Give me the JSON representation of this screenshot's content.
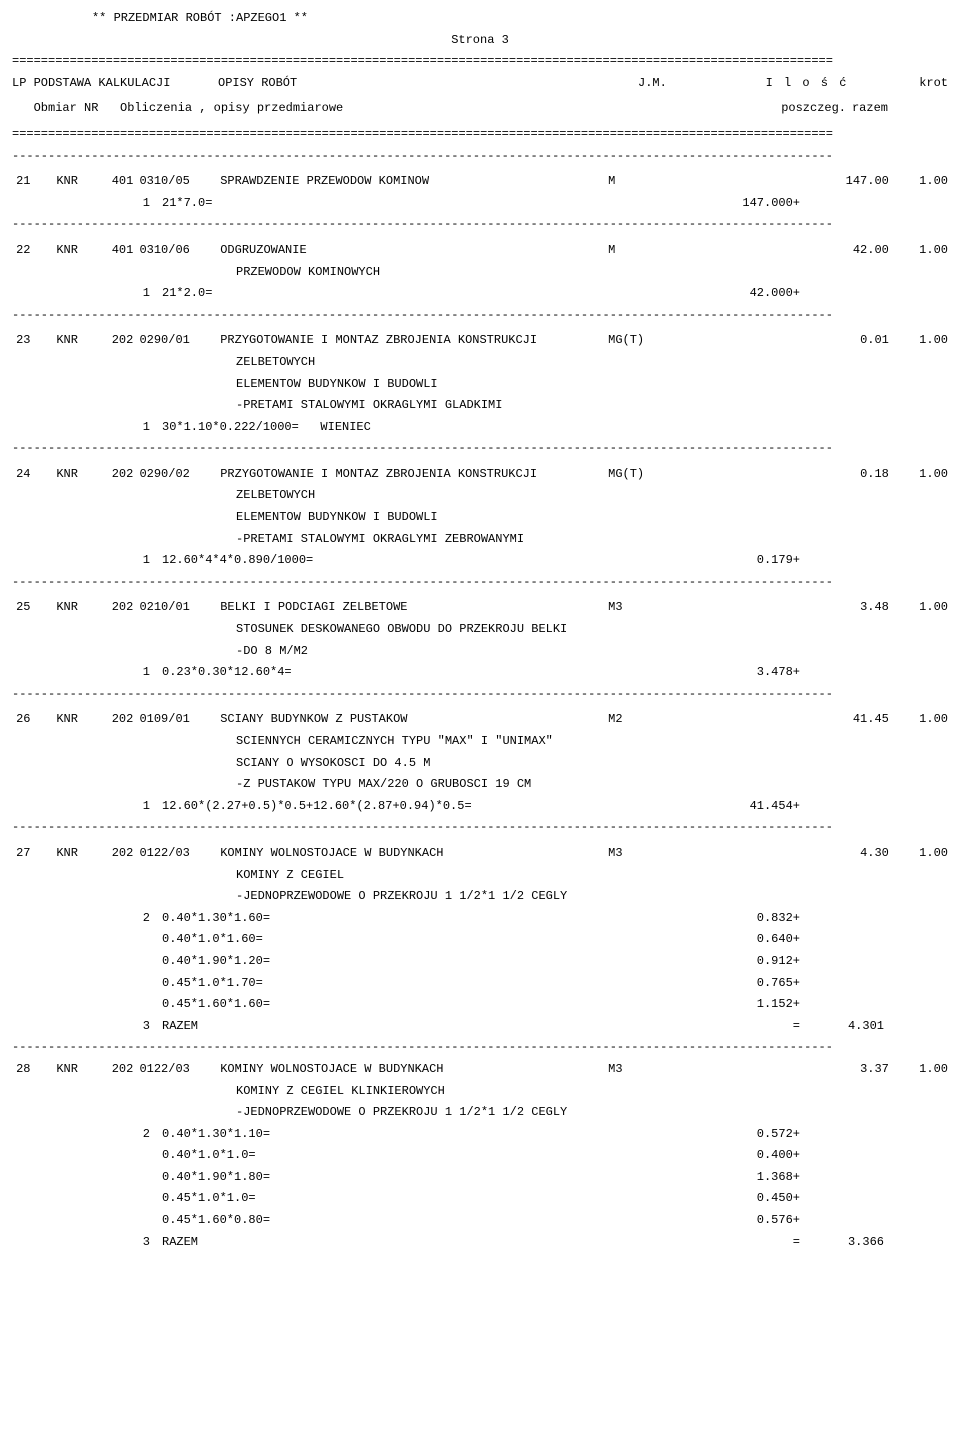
{
  "header": {
    "title": "** PRZEDMIAR ROBÓT :APZEGO1 **",
    "page": "Strona  3"
  },
  "columns": {
    "lp_podstawa": "LP PODSTAWA KALKULACJI",
    "opisy": "OPISY ROBÓT",
    "jm": "J.M.",
    "ilosc": "I l o ś ć",
    "krot": "krot",
    "obmiar": "   Obmiar NR   Obliczenia , opisy przedmiarowe",
    "poszczeg": "poszczeg.",
    "razem": "razem"
  },
  "sep_eq": "==================================================================================================================",
  "sep_dash": "------------------------------------------------------------------------------------------------------------------",
  "items": [
    {
      "lp": "21",
      "ref": "KNR",
      "num": "401",
      "code": "0310/05",
      "desc": [
        "SPRAWDZENIE PRZEWODOW KOMINOW"
      ],
      "jm": "M",
      "razem": "147.00",
      "krot": "1.00",
      "calcs": [
        {
          "nr": "1",
          "expr": "21*7.0=",
          "val": "147.000+"
        }
      ]
    },
    {
      "lp": "22",
      "ref": "KNR",
      "num": "401",
      "code": "0310/06",
      "desc": [
        "ODGRUZOWANIE",
        "PRZEWODOW KOMINOWYCH"
      ],
      "jm": "M",
      "razem": "42.00",
      "krot": "1.00",
      "calcs": [
        {
          "nr": "1",
          "expr": "21*2.0=",
          "val": "42.000+"
        }
      ]
    },
    {
      "lp": "23",
      "ref": "KNR",
      "num": "202",
      "code": "0290/01",
      "desc": [
        "PRZYGOTOWANIE I MONTAZ ZBROJENIA KONSTRUKCJI",
        "ZELBETOWYCH",
        "ELEMENTOW BUDYNKOW I BUDOWLI",
        "-PRETAMI STALOWYMI OKRAGLYMI GLADKIMI"
      ],
      "jm": "MG(T)",
      "razem": "0.01",
      "krot": "1.00",
      "calcs": [
        {
          "nr": "1",
          "expr": "30*1.10*0.222/1000=   WIENIEC",
          "val": ""
        }
      ]
    },
    {
      "lp": "24",
      "ref": "KNR",
      "num": "202",
      "code": "0290/02",
      "desc": [
        "PRZYGOTOWANIE I MONTAZ ZBROJENIA KONSTRUKCJI",
        "ZELBETOWYCH",
        "ELEMENTOW BUDYNKOW I BUDOWLI",
        "-PRETAMI STALOWYMI OKRAGLYMI ZEBROWANYMI"
      ],
      "jm": "MG(T)",
      "razem": "0.18",
      "krot": "1.00",
      "calcs": [
        {
          "nr": "1",
          "expr": "12.60*4*4*0.890/1000=",
          "val": "0.179+"
        }
      ]
    },
    {
      "lp": "25",
      "ref": "KNR",
      "num": "202",
      "code": "0210/01",
      "desc": [
        "BELKI I PODCIAGI ZELBETOWE",
        "STOSUNEK DESKOWANEGO OBWODU DO PRZEKROJU BELKI",
        "-DO 8 M/M2"
      ],
      "jm": "M3",
      "razem": "3.48",
      "krot": "1.00",
      "calcs": [
        {
          "nr": "1",
          "expr": "0.23*0.30*12.60*4=",
          "val": "3.478+"
        }
      ]
    },
    {
      "lp": "26",
      "ref": "KNR",
      "num": "202",
      "code": "0109/01",
      "desc": [
        "SCIANY BUDYNKOW Z PUSTAKOW",
        "SCIENNYCH CERAMICZNYCH TYPU \"MAX\" I \"UNIMAX\"",
        "SCIANY O WYSOKOSCI DO 4.5 M",
        "-Z PUSTAKOW TYPU MAX/220 O GRUBOSCI 19 CM"
      ],
      "jm": "M2",
      "razem": "41.45",
      "krot": "1.00",
      "calcs": [
        {
          "nr": "1",
          "expr": "12.60*(2.27+0.5)*0.5+12.60*(2.87+0.94)*0.5=",
          "val": "41.454+"
        }
      ]
    },
    {
      "lp": "27",
      "ref": "KNR",
      "num": "202",
      "code": "0122/03",
      "desc": [
        "KOMINY WOLNOSTOJACE W BUDYNKACH",
        "KOMINY Z CEGIEL",
        "-JEDNOPRZEWODOWE O PRZEKROJU 1 1/2*1 1/2 CEGLY"
      ],
      "jm": "M3",
      "razem": "4.30",
      "krot": "1.00",
      "calcs": [
        {
          "nr": "2",
          "expr": "0.40*1.30*1.60=",
          "val": "0.832+"
        },
        {
          "nr": "",
          "expr": "0.40*1.0*1.60=",
          "val": "0.640+"
        },
        {
          "nr": "",
          "expr": "0.40*1.90*1.20=",
          "val": "0.912+"
        },
        {
          "nr": "",
          "expr": "0.45*1.0*1.70=",
          "val": "0.765+"
        },
        {
          "nr": "",
          "expr": "0.45*1.60*1.60=",
          "val": "1.152+"
        }
      ],
      "total": {
        "nr": "3",
        "label": "RAZEM",
        "eq": "=",
        "val": "4.301"
      }
    },
    {
      "lp": "28",
      "ref": "KNR",
      "num": "202",
      "code": "0122/03",
      "desc": [
        "KOMINY WOLNOSTOJACE W BUDYNKACH",
        "KOMINY Z CEGIEL KLINKIEROWYCH",
        "-JEDNOPRZEWODOWE O PRZEKROJU 1 1/2*1 1/2 CEGLY"
      ],
      "jm": "M3",
      "razem": "3.37",
      "krot": "1.00",
      "calcs": [
        {
          "nr": "2",
          "expr": "0.40*1.30*1.10=",
          "val": "0.572+"
        },
        {
          "nr": "",
          "expr": "0.40*1.0*1.0=",
          "val": "0.400+"
        },
        {
          "nr": "",
          "expr": "0.40*1.90*1.80=",
          "val": "1.368+"
        },
        {
          "nr": "",
          "expr": "0.45*1.0*1.0=",
          "val": "0.450+"
        },
        {
          "nr": "",
          "expr": "0.45*1.60*0.80=",
          "val": "0.576+"
        }
      ],
      "total": {
        "nr": "3",
        "label": "RAZEM",
        "eq": "=",
        "val": "3.366"
      },
      "no_leading_sep": true,
      "no_trailing_sep": true
    }
  ]
}
